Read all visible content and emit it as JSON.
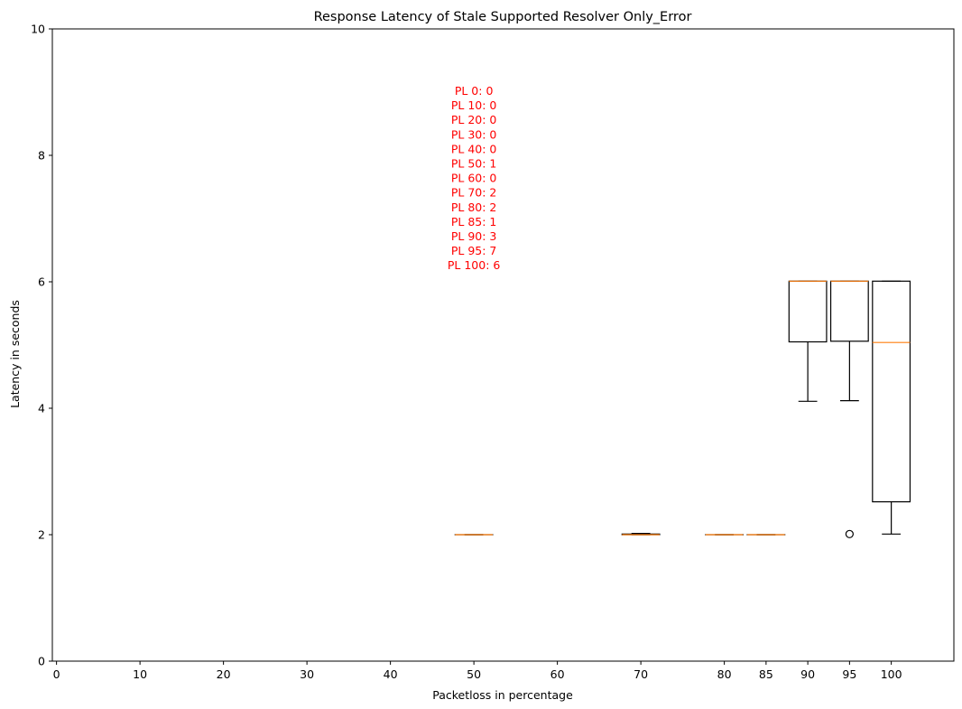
{
  "chart_data": {
    "type": "boxplot",
    "title": "Response Latency of Stale Supported Resolver Only_Error",
    "xlabel": "Packetloss in percentage",
    "ylabel": "Latency in seconds",
    "ylim": [
      0,
      10
    ],
    "yticks": [
      0,
      2,
      4,
      6,
      8,
      10
    ],
    "xlim": [
      -0.5,
      107.5
    ],
    "xticks": [
      0,
      10,
      20,
      30,
      40,
      50,
      60,
      70,
      80,
      85,
      90,
      95,
      100
    ],
    "grid": false,
    "box_width": 4.5,
    "boxes": [
      {
        "x": 50,
        "whislo": 2.0,
        "q1": 2.0,
        "med": 2.0,
        "q3": 2.0,
        "whishi": 2.0,
        "fliers": []
      },
      {
        "x": 70,
        "whislo": 2.0,
        "q1": 2.0,
        "med": 2.0,
        "q3": 2.01,
        "whishi": 2.02,
        "fliers": []
      },
      {
        "x": 80,
        "whislo": 2.0,
        "q1": 2.0,
        "med": 2.0,
        "q3": 2.0,
        "whishi": 2.0,
        "fliers": []
      },
      {
        "x": 85,
        "whislo": 2.0,
        "q1": 2.0,
        "med": 2.0,
        "q3": 2.0,
        "whishi": 2.0,
        "fliers": []
      },
      {
        "x": 90,
        "whislo": 4.11,
        "q1": 5.05,
        "med": 6.01,
        "q3": 6.01,
        "whishi": 6.01,
        "fliers": []
      },
      {
        "x": 95,
        "whislo": 4.12,
        "q1": 5.06,
        "med": 6.01,
        "q3": 6.01,
        "whishi": 6.01,
        "fliers": [
          2.01
        ]
      },
      {
        "x": 100,
        "whislo": 2.01,
        "q1": 2.52,
        "med": 5.04,
        "q3": 6.01,
        "whishi": 6.01,
        "fliers": []
      }
    ],
    "annotation_color": "#ff0000",
    "annotation_x": 50,
    "annotation": [
      "PL 0: 0",
      "PL 10: 0",
      "PL 20: 0",
      "PL 30: 0",
      "PL 40: 0",
      "PL 50: 1",
      "PL 60: 0",
      "PL 70: 2",
      "PL 80: 2",
      "PL 85: 1",
      "PL 90: 3",
      "PL 95: 7",
      "PL 100: 6"
    ],
    "box_color": "#000000",
    "median_color": "#ff7f0e"
  }
}
